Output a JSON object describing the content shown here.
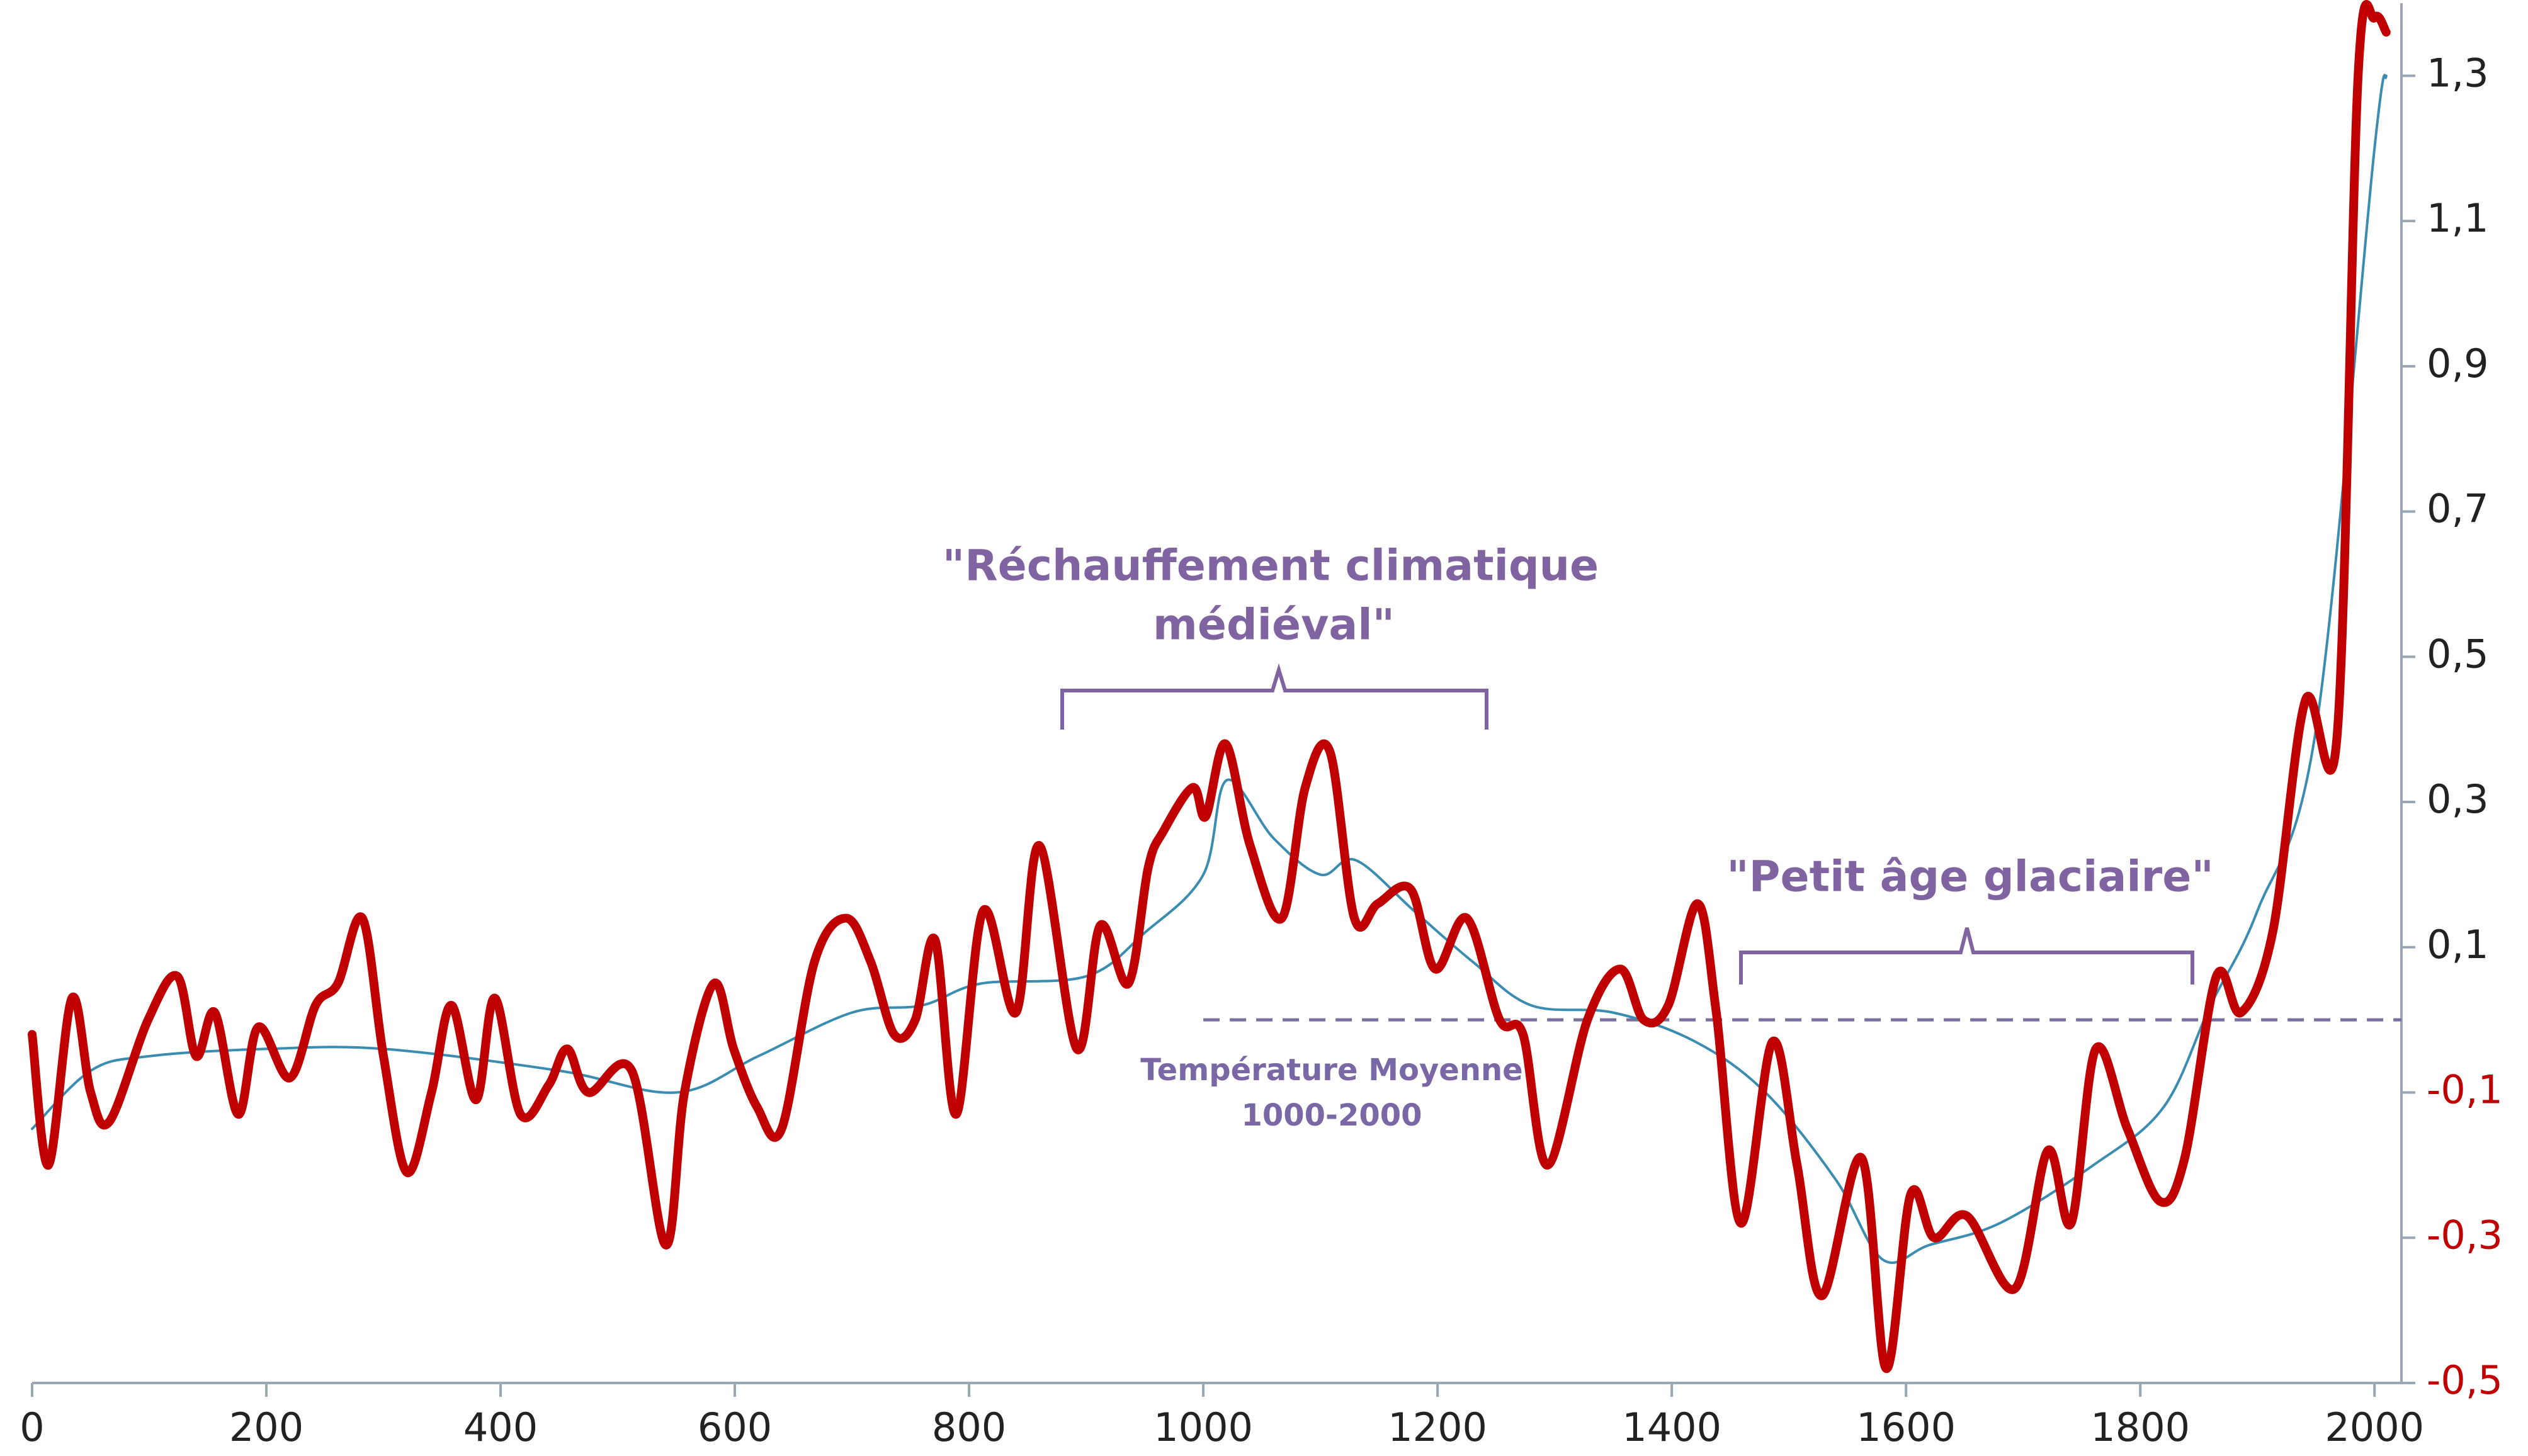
{
  "chart_data": {
    "type": "line",
    "annotations": [
      {
        "lines": [
          "\"Réchauffement climatique",
          "médiéval\""
        ]
      },
      {
        "lines": [
          "\"Petit âge glaciaire\""
        ]
      },
      {
        "lines": [
          "Température Moyenne",
          "1000-2000"
        ]
      }
    ],
    "reference_line": {
      "y": 0,
      "x_start": 1000
    },
    "xlim": [
      0,
      2023
    ],
    "xticks": [
      0,
      200,
      400,
      600,
      800,
      1000,
      1200,
      1400,
      1600,
      1800,
      2000
    ],
    "ylim": [
      -0.5,
      1.4
    ],
    "yticks": [
      {
        "value": -0.5,
        "label": "-0,5"
      },
      {
        "value": -0.3,
        "label": "-0,3"
      },
      {
        "value": -0.1,
        "label": "-0,1"
      },
      {
        "value": 0.1,
        "label": "0,1"
      },
      {
        "value": 0.3,
        "label": "0,3"
      },
      {
        "value": 0.5,
        "label": "0,5"
      },
      {
        "value": 0.7,
        "label": "0,7"
      },
      {
        "value": 0.9,
        "label": "0,9"
      },
      {
        "value": 1.1,
        "label": "1,1"
      },
      {
        "value": 1.3,
        "label": "1,3"
      }
    ],
    "series": [
      {
        "color": "#3a8cb0",
        "x": [
          0,
          50,
          100,
          200,
          300,
          450,
          550,
          620,
          700,
          760,
          810,
          900,
          950,
          1000,
          1020,
          1060,
          1100,
          1130,
          1180,
          1230,
          1280,
          1350,
          1420,
          1480,
          1540,
          1580,
          1620,
          1680,
          1760,
          1820,
          1860,
          1900,
          1950,
          2000,
          2010
        ],
        "values": [
          -0.15,
          -0.07,
          -0.05,
          -0.04,
          -0.04,
          -0.07,
          -0.1,
          -0.05,
          0.01,
          0.02,
          0.05,
          0.06,
          0.12,
          0.2,
          0.33,
          0.25,
          0.2,
          0.22,
          0.15,
          0.08,
          0.02,
          0.01,
          -0.03,
          -0.1,
          -0.22,
          -0.33,
          -0.31,
          -0.28,
          -0.2,
          -0.12,
          0.02,
          0.15,
          0.4,
          1.2,
          1.3
        ]
      },
      {
        "color": "#c00000",
        "x": [
          0,
          14,
          34,
          50,
          66,
          99,
          124,
          140,
          156,
          176,
          193,
          220,
          242,
          261,
          282,
          300,
          320,
          341,
          358,
          379,
          395,
          417,
          441,
          457,
          475,
          512,
          541,
          557,
          582,
          599,
          619,
          640,
          668,
          695,
          716,
          736,
          754,
          771,
          789,
          812,
          840,
          860,
          892,
          912,
          936,
          953,
          966,
          991,
          1002,
          1019,
          1040,
          1067,
          1087,
          1108,
          1129,
          1149,
          1177,
          1198,
          1225,
          1253,
          1273,
          1294,
          1328,
          1356,
          1376,
          1397,
          1422,
          1438,
          1459,
          1486,
          1507,
          1528,
          1562,
          1583,
          1604,
          1624,
          1652,
          1693,
          1721,
          1741,
          1762,
          1789,
          1817,
          1838,
          1865,
          1886,
          1913,
          1941,
          1968,
          1986,
          2000,
          2010
        ],
        "values": [
          -0.02,
          -0.2,
          0.03,
          -0.1,
          -0.14,
          0.0,
          0.06,
          -0.05,
          0.01,
          -0.13,
          -0.01,
          -0.08,
          0.02,
          0.05,
          0.14,
          -0.05,
          -0.21,
          -0.1,
          0.02,
          -0.11,
          0.03,
          -0.13,
          -0.09,
          -0.04,
          -0.1,
          -0.07,
          -0.31,
          -0.1,
          0.05,
          -0.04,
          -0.12,
          -0.15,
          0.08,
          0.14,
          0.08,
          -0.02,
          0.0,
          0.11,
          -0.13,
          0.15,
          0.01,
          0.24,
          -0.04,
          0.13,
          0.05,
          0.21,
          0.26,
          0.32,
          0.28,
          0.38,
          0.24,
          0.14,
          0.32,
          0.37,
          0.14,
          0.16,
          0.18,
          0.07,
          0.14,
          0.0,
          -0.02,
          -0.2,
          0.0,
          0.07,
          0.0,
          0.02,
          0.16,
          0.01,
          -0.28,
          -0.03,
          -0.2,
          -0.38,
          -0.19,
          -0.48,
          -0.24,
          -0.3,
          -0.27,
          -0.37,
          -0.18,
          -0.28,
          -0.04,
          -0.15,
          -0.25,
          -0.19,
          0.06,
          0.01,
          0.12,
          0.44,
          0.39,
          1.3,
          1.38,
          1.36
        ]
      }
    ]
  }
}
